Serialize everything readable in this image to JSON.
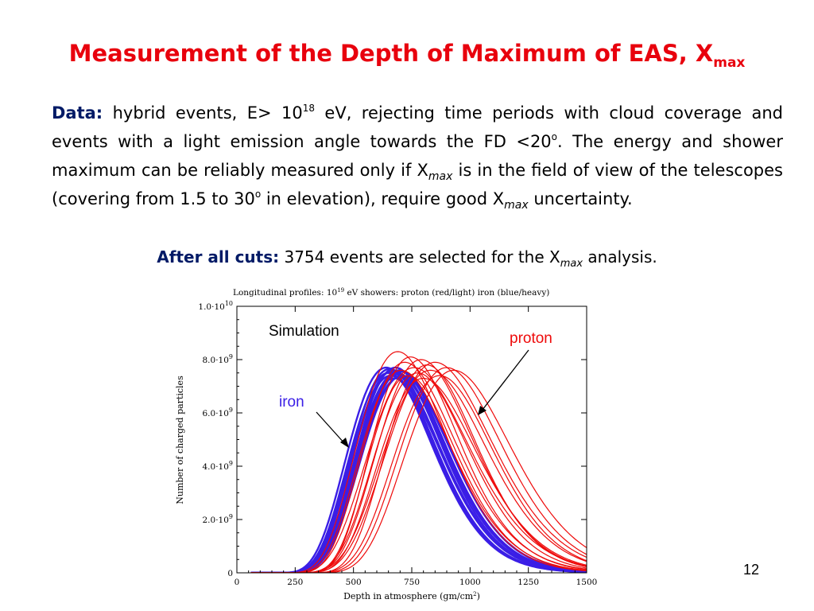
{
  "slide": {
    "title_main": "Measurement of the Depth of Maximum of EAS, X",
    "title_sub": "max",
    "data_label": "Data:",
    "p_part1": " hybrid events, E> 10",
    "p_sup1": "18",
    "p_part2": " eV, rejecting time periods with cloud coverage and events with a light emission angle towards the FD <20",
    "p_sup2": "o",
    "p_part3": ". The energy and shower maximum can be reliably measured only if X",
    "p_sub1": "max",
    "p_part4": " is in the field of view of the telescopes (covering from 1.5 to 30",
    "p_sup3": "o",
    "p_part5": " in elevation), require good X",
    "p_sub2": "max",
    "p_part6": " uncertainty.",
    "cuts_label": "After all cuts:",
    "cuts_text1": " 3754 events are selected for the X",
    "cuts_sub": "max",
    "cuts_text2": " analysis.",
    "page_number": "12"
  },
  "chart_data": {
    "type": "line",
    "title": "Longitudinal profiles: 10",
    "title_sup": "19",
    "title_rest": " eV showers: proton (red/light) iron (blue/heavy)",
    "xlabel": "Depth in atmosphere (gm/cm",
    "xlabel_sup": "2",
    "xlabel_end": ")",
    "ylabel": "Number of charged particles",
    "xlim": [
      0,
      1500
    ],
    "ylim": [
      0,
      10000000000
    ],
    "x_ticks": [
      "0",
      "250",
      "500",
      "750",
      "1000",
      "1250",
      "1500"
    ],
    "y_ticks": [
      {
        "mant": "0",
        "exp": ""
      },
      {
        "mant": "2.0·10",
        "exp": "9"
      },
      {
        "mant": "4.0·10",
        "exp": "9"
      },
      {
        "mant": "6.0·10",
        "exp": "9"
      },
      {
        "mant": "8.0·10",
        "exp": "9"
      },
      {
        "mant": "1.0·10",
        "exp": "10"
      }
    ],
    "annotations": {
      "simulation": "Simulation",
      "iron": "iron",
      "proton": "proton"
    },
    "colors": {
      "iron": "#3a1ee6",
      "proton": "#ee0a0a"
    },
    "series": [
      {
        "name": "iron",
        "xmax": [
          640,
          650,
          655,
          660,
          665,
          670,
          675,
          680,
          685,
          690,
          695,
          700,
          705,
          710
        ],
        "nmax": [
          7700000000.0,
          7500000000.0,
          7650000000.0,
          7400000000.0,
          7550000000.0,
          7600000000.0,
          7300000000.0,
          7700000000.0,
          7500000000.0,
          7450000000.0,
          7600000000.0,
          7350000000.0,
          7550000000.0,
          7400000000.0
        ]
      },
      {
        "name": "proton",
        "xmax": [
          690,
          705,
          720,
          735,
          745,
          760,
          775,
          790,
          800,
          815,
          830,
          850,
          870,
          900,
          930
        ],
        "nmax": [
          8300000000.0,
          7600000000.0,
          7900000000.0,
          7400000000.0,
          8100000000.0,
          7700000000.0,
          7500000000.0,
          8000000000.0,
          7300000000.0,
          7800000000.0,
          7600000000.0,
          7900000000.0,
          7400000000.0,
          7700000000.0,
          7600000000.0
        ]
      }
    ]
  }
}
